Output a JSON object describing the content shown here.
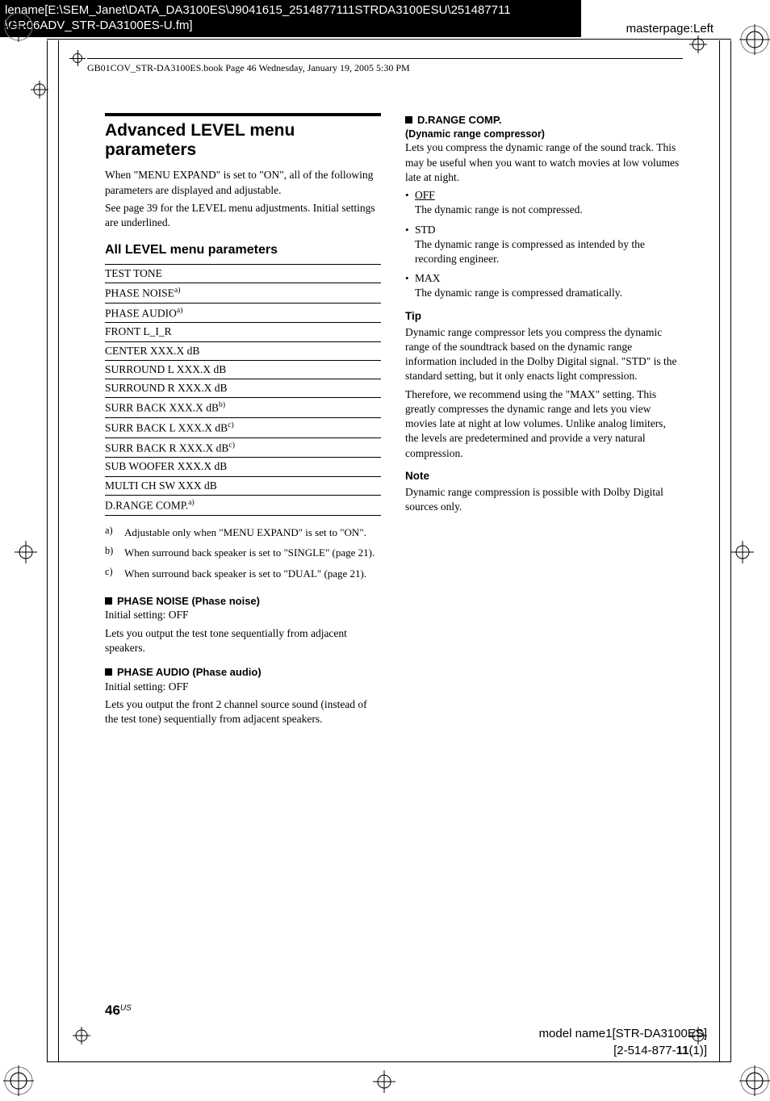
{
  "meta": {
    "bookHeader": "GB01COV_STR-DA3100ES.book  Page 46  Wednesday, January 19, 2005  5:30 PM",
    "topbarLine1": "lename[E:\\SEM_Janet\\DATA_DA3100ES\\J9041615_2514877111STRDA3100ESU\\251487711",
    "topbarLine2": "\\GR06ADV_STR-DA3100ES-U.fm]",
    "masterpage": "masterpage:Left",
    "pageNumber": "46",
    "pageRegion": "US",
    "modelLine1": "model name1[STR-DA3100ES]",
    "modelLine2a": "[2-514-877-",
    "modelLine2b": "11",
    "modelLine2c": "(1)]"
  },
  "left": {
    "title": "Advanced LEVEL menu parameters",
    "intro1": "When \"MENU EXPAND\" is set to \"ON\", all of the following parameters are displayed and adjustable.",
    "intro2": "See page 39 for the LEVEL menu adjustments. Initial settings are underlined.",
    "sub": "All LEVEL menu parameters",
    "params": [
      {
        "text": "TEST TONE",
        "sup": ""
      },
      {
        "text": "PHASE NOISE",
        "sup": "a)"
      },
      {
        "text": "PHASE AUDIO",
        "sup": "a)"
      },
      {
        "text": "FRONT L_I_R",
        "sup": ""
      },
      {
        "text": "CENTER XXX.X dB",
        "sup": ""
      },
      {
        "text": "SURROUND L XXX.X dB",
        "sup": ""
      },
      {
        "text": "SURROUND R XXX.X dB",
        "sup": ""
      },
      {
        "text": "SURR BACK XXX.X dB",
        "sup": "b)"
      },
      {
        "text": "SURR BACK L XXX.X dB",
        "sup": "c)"
      },
      {
        "text": "SURR BACK R XXX.X dB",
        "sup": "c)"
      },
      {
        "text": "SUB WOOFER XXX.X dB",
        "sup": ""
      },
      {
        "text": "MULTI CH SW XXX dB",
        "sup": ""
      },
      {
        "text": "D.RANGE COMP.",
        "sup": "a)"
      }
    ],
    "footnotes": [
      {
        "mark": "a)",
        "text": "Adjustable only when \"MENU EXPAND\" is set to \"ON\"."
      },
      {
        "mark": "b)",
        "text": "When surround back speaker is set to \"SINGLE\" (page 21)."
      },
      {
        "mark": "c)",
        "text": "When surround back speaker is set to \"DUAL\" (page 21)."
      }
    ],
    "phaseNoise": {
      "head": "PHASE NOISE (Phase noise)",
      "init": "Initial setting: OFF",
      "desc": "Lets you output the test tone sequentially from adjacent speakers."
    },
    "phaseAudio": {
      "head": "PHASE AUDIO (Phase audio)",
      "init": "Initial setting: OFF",
      "desc": "Lets you output the front 2 channel source sound (instead of the test tone) sequentially from adjacent speakers."
    }
  },
  "right": {
    "drange": {
      "head": "D.RANGE COMP.",
      "sub": "(Dynamic range compressor)",
      "desc": "Lets you compress the dynamic range of the sound track. This may be useful when you want to watch movies at low volumes late at night.",
      "opts": [
        {
          "label": "OFF",
          "underline": true,
          "desc": "The dynamic range is not compressed."
        },
        {
          "label": "STD",
          "underline": false,
          "desc": "The dynamic range is compressed as intended by the recording engineer."
        },
        {
          "label": "MAX",
          "underline": false,
          "desc": "The dynamic range is compressed dramatically."
        }
      ]
    },
    "tipHead": "Tip",
    "tip1": "Dynamic range compressor lets you compress the dynamic range of the soundtrack based on the dynamic range information included in the Dolby Digital signal. \"STD\" is the standard setting, but it only enacts light compression.",
    "tip2": "Therefore, we recommend using the \"MAX\" setting. This greatly compresses the dynamic range and lets you view movies late at night at low volumes. Unlike analog limiters, the levels are predetermined and provide a very natural compression.",
    "noteHead": "Note",
    "note": "Dynamic range compression is possible with Dolby Digital sources only."
  }
}
